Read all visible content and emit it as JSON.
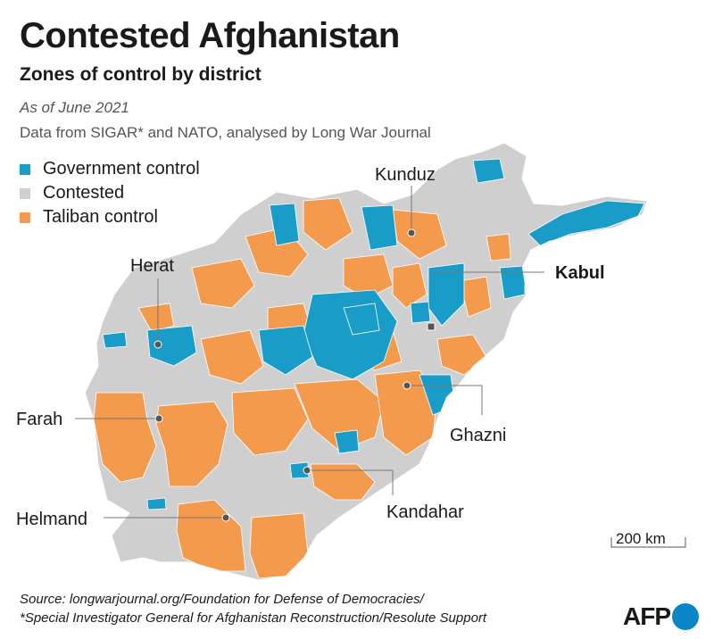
{
  "header": {
    "title": "Contested Afghanistan",
    "subtitle": "Zones of control by district",
    "date": "As of June 2021",
    "credit": "Data from SIGAR* and NATO, analysed by Long War Journal"
  },
  "legend": [
    {
      "label": "Government control",
      "color": "#1a9cc9"
    },
    {
      "label": "Contested",
      "color": "#cfcfcf"
    },
    {
      "label": "Taliban control",
      "color": "#f39a4c"
    }
  ],
  "cities": {
    "kunduz": "Kunduz",
    "herat": "Herat",
    "kabul": "Kabul",
    "farah": "Farah",
    "ghazni": "Ghazni",
    "helmand": "Helmand",
    "kandahar": "Kandahar"
  },
  "scale": "200 km",
  "source": {
    "line1": "Source: longwarjournal.org/Foundation for Defense of Democracies/",
    "line2": "*Special Investigator General for Afghanistan Reconstruction/Resolute Support"
  },
  "logo": {
    "text": "AFP"
  }
}
